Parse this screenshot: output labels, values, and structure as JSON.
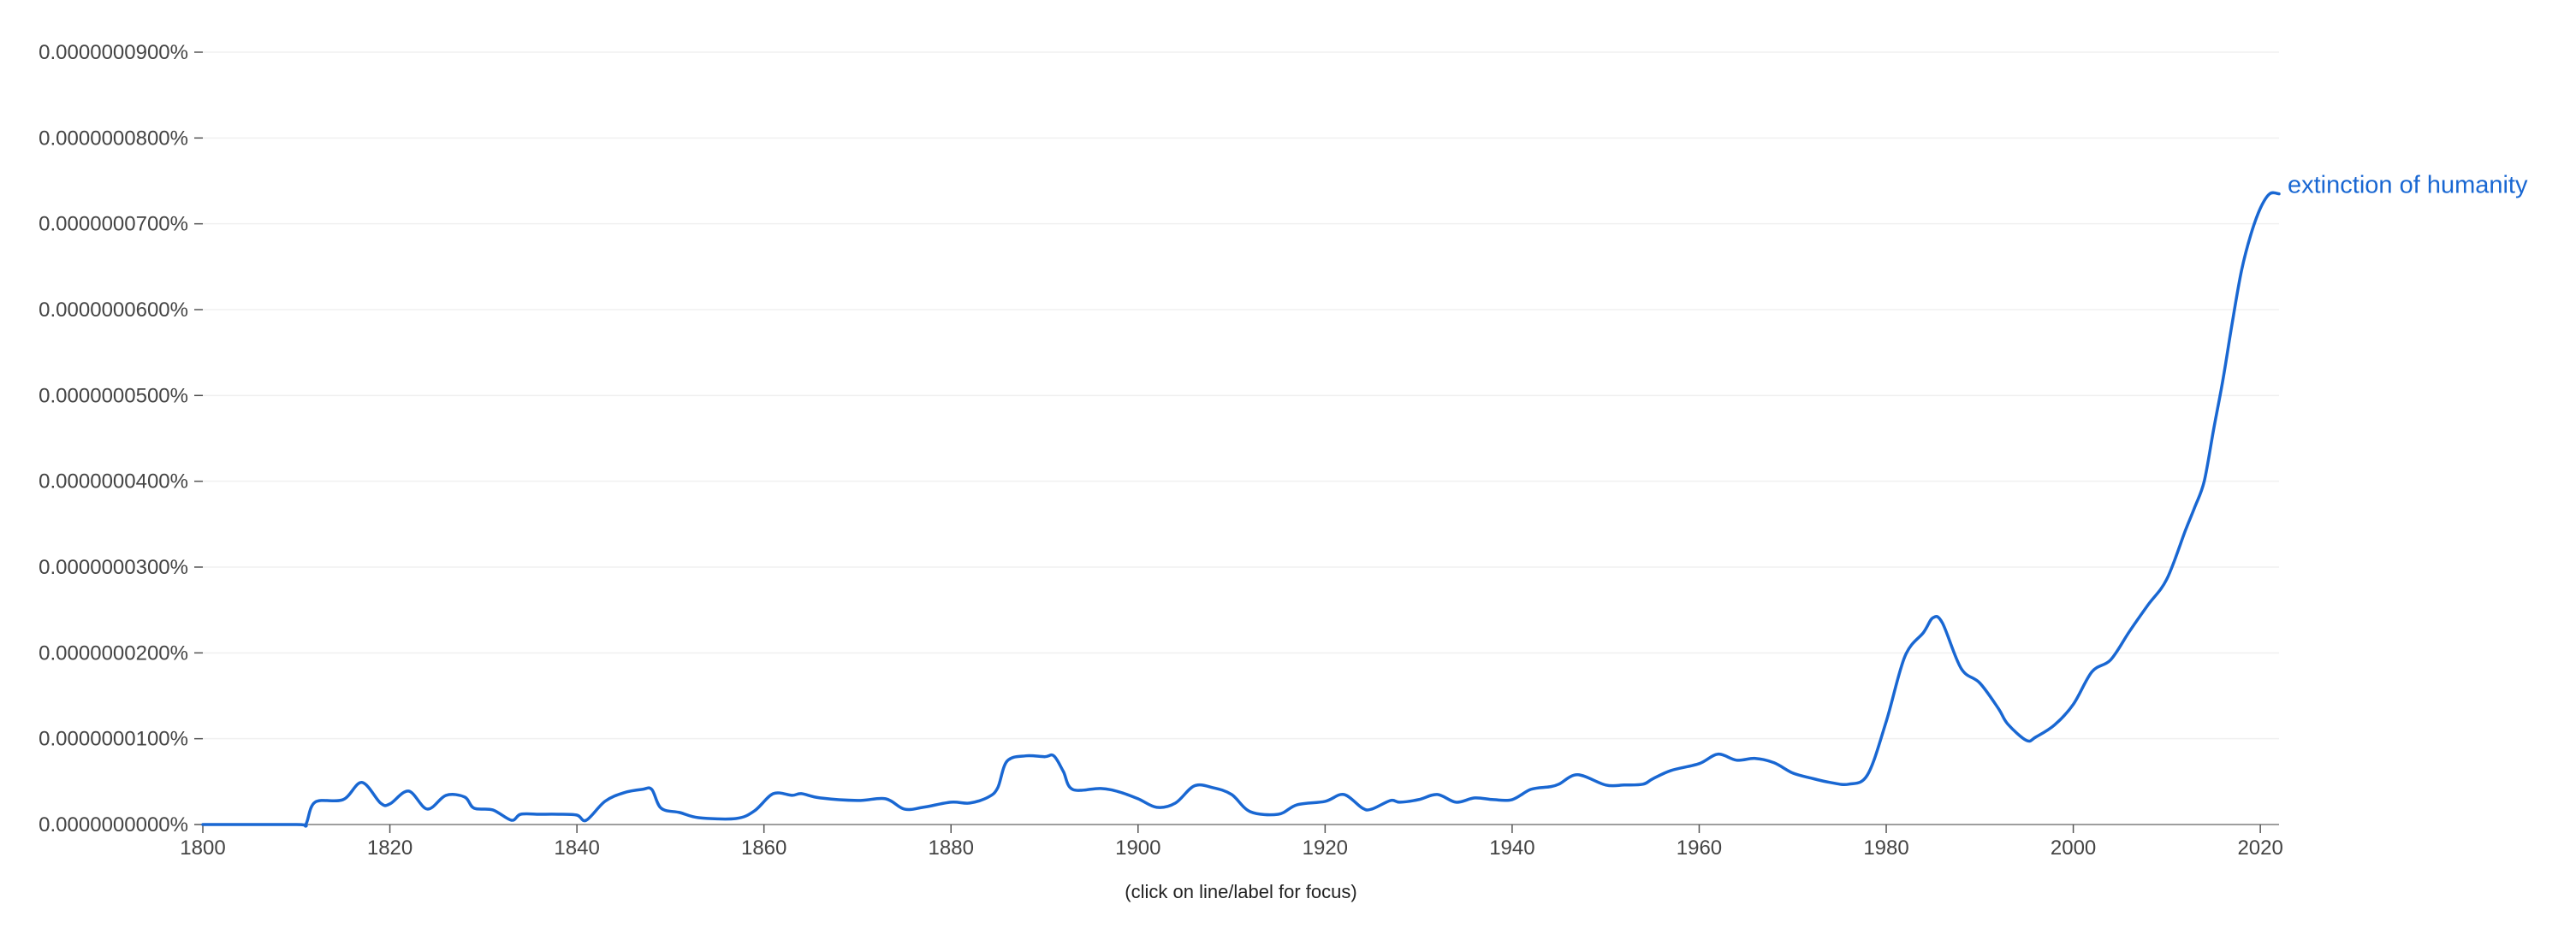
{
  "caption": "(click on line/label for focus)",
  "colors": {
    "series": "#1967d2"
  },
  "chart_data": {
    "type": "line",
    "title": "",
    "xlabel": "",
    "ylabel": "",
    "xlim": [
      1800,
      2022
    ],
    "ylim": [
      0,
      9e-07
    ],
    "y_ticks": [
      {
        "value": 0,
        "label": "0.0000000000%"
      },
      {
        "value": 1e-07,
        "label": "0.0000000100%"
      },
      {
        "value": 2e-07,
        "label": "0.0000000200%"
      },
      {
        "value": 3e-07,
        "label": "0.0000000300%"
      },
      {
        "value": 4e-07,
        "label": "0.0000000400%"
      },
      {
        "value": 5e-07,
        "label": "0.0000000500%"
      },
      {
        "value": 6e-07,
        "label": "0.0000000600%"
      },
      {
        "value": 7e-07,
        "label": "0.0000000700%"
      },
      {
        "value": 8e-07,
        "label": "0.0000000800%"
      },
      {
        "value": 9e-07,
        "label": "0.0000000900%"
      }
    ],
    "x_ticks": [
      {
        "value": 1800,
        "label": "1800"
      },
      {
        "value": 1820,
        "label": "1820"
      },
      {
        "value": 1840,
        "label": "1840"
      },
      {
        "value": 1860,
        "label": "1860"
      },
      {
        "value": 1880,
        "label": "1880"
      },
      {
        "value": 1900,
        "label": "1900"
      },
      {
        "value": 1920,
        "label": "1920"
      },
      {
        "value": 1940,
        "label": "1940"
      },
      {
        "value": 1960,
        "label": "1960"
      },
      {
        "value": 1980,
        "label": "1980"
      },
      {
        "value": 2000,
        "label": "2000"
      },
      {
        "value": 2020,
        "label": "2020"
      }
    ],
    "grid": true,
    "legend": "inline label at line end",
    "series": [
      {
        "name": "extinction of humanity",
        "color": "#1967d2",
        "points": [
          [
            1800,
            0.0
          ],
          [
            1810,
            0.0
          ],
          [
            1811,
            0.0
          ],
          [
            1812,
            0.026
          ],
          [
            1815,
            0.029
          ],
          [
            1817,
            0.049
          ],
          [
            1819,
            0.025
          ],
          [
            1820,
            0.024
          ],
          [
            1822,
            0.039
          ],
          [
            1824,
            0.018
          ],
          [
            1826,
            0.034
          ],
          [
            1828,
            0.032
          ],
          [
            1829,
            0.019
          ],
          [
            1831,
            0.017
          ],
          [
            1833,
            0.005
          ],
          [
            1834,
            0.012
          ],
          [
            1836,
            0.012
          ],
          [
            1838,
            0.012
          ],
          [
            1840,
            0.011
          ],
          [
            1841,
            0.005
          ],
          [
            1843,
            0.027
          ],
          [
            1845,
            0.037
          ],
          [
            1847,
            0.041
          ],
          [
            1848,
            0.041
          ],
          [
            1849,
            0.019
          ],
          [
            1851,
            0.014
          ],
          [
            1853,
            0.008
          ],
          [
            1857,
            0.007
          ],
          [
            1859,
            0.016
          ],
          [
            1861,
            0.036
          ],
          [
            1863,
            0.034
          ],
          [
            1864,
            0.036
          ],
          [
            1866,
            0.031
          ],
          [
            1870,
            0.028
          ],
          [
            1873,
            0.03
          ],
          [
            1875,
            0.018
          ],
          [
            1877,
            0.02
          ],
          [
            1880,
            0.026
          ],
          [
            1882,
            0.025
          ],
          [
            1884,
            0.032
          ],
          [
            1885,
            0.043
          ],
          [
            1886,
            0.074
          ],
          [
            1888,
            0.08
          ],
          [
            1890,
            0.079
          ],
          [
            1891,
            0.08
          ],
          [
            1892,
            0.062
          ],
          [
            1893,
            0.041
          ],
          [
            1896,
            0.042
          ],
          [
            1898,
            0.038
          ],
          [
            1900,
            0.03
          ],
          [
            1902,
            0.02
          ],
          [
            1904,
            0.025
          ],
          [
            1906,
            0.045
          ],
          [
            1908,
            0.043
          ],
          [
            1910,
            0.035
          ],
          [
            1912,
            0.015
          ],
          [
            1915,
            0.012
          ],
          [
            1917,
            0.023
          ],
          [
            1920,
            0.027
          ],
          [
            1922,
            0.035
          ],
          [
            1924,
            0.019
          ],
          [
            1925,
            0.018
          ],
          [
            1927,
            0.028
          ],
          [
            1928,
            0.026
          ],
          [
            1930,
            0.029
          ],
          [
            1932,
            0.035
          ],
          [
            1934,
            0.026
          ],
          [
            1936,
            0.031
          ],
          [
            1938,
            0.029
          ],
          [
            1940,
            0.029
          ],
          [
            1942,
            0.041
          ],
          [
            1944,
            0.044
          ],
          [
            1945,
            0.047
          ],
          [
            1947,
            0.058
          ],
          [
            1950,
            0.046
          ],
          [
            1952,
            0.046
          ],
          [
            1954,
            0.047
          ],
          [
            1955,
            0.053
          ],
          [
            1957,
            0.063
          ],
          [
            1960,
            0.071
          ],
          [
            1962,
            0.082
          ],
          [
            1964,
            0.075
          ],
          [
            1966,
            0.077
          ],
          [
            1968,
            0.072
          ],
          [
            1970,
            0.06
          ],
          [
            1972,
            0.054
          ],
          [
            1974,
            0.049
          ],
          [
            1976,
            0.047
          ],
          [
            1978,
            0.058
          ],
          [
            1980,
            0.12
          ],
          [
            1982,
            0.196
          ],
          [
            1984,
            0.224
          ],
          [
            1985,
            0.241
          ],
          [
            1986,
            0.235
          ],
          [
            1988,
            0.182
          ],
          [
            1990,
            0.165
          ],
          [
            1992,
            0.135
          ],
          [
            1993,
            0.117
          ],
          [
            1995,
            0.098
          ],
          [
            1996,
            0.102
          ],
          [
            1998,
            0.116
          ],
          [
            2000,
            0.14
          ],
          [
            2002,
            0.178
          ],
          [
            2004,
            0.192
          ],
          [
            2006,
            0.225
          ],
          [
            2008,
            0.256
          ],
          [
            2010,
            0.286
          ],
          [
            2012,
            0.343
          ],
          [
            2013,
            0.37
          ],
          [
            2014,
            0.4
          ],
          [
            2015,
            0.46
          ],
          [
            2016,
            0.518
          ],
          [
            2017,
            0.585
          ],
          [
            2018,
            0.646
          ],
          [
            2019,
            0.688
          ],
          [
            2020,
            0.718
          ],
          [
            2021,
            0.735
          ],
          [
            2022,
            0.735
          ]
        ]
      }
    ]
  }
}
